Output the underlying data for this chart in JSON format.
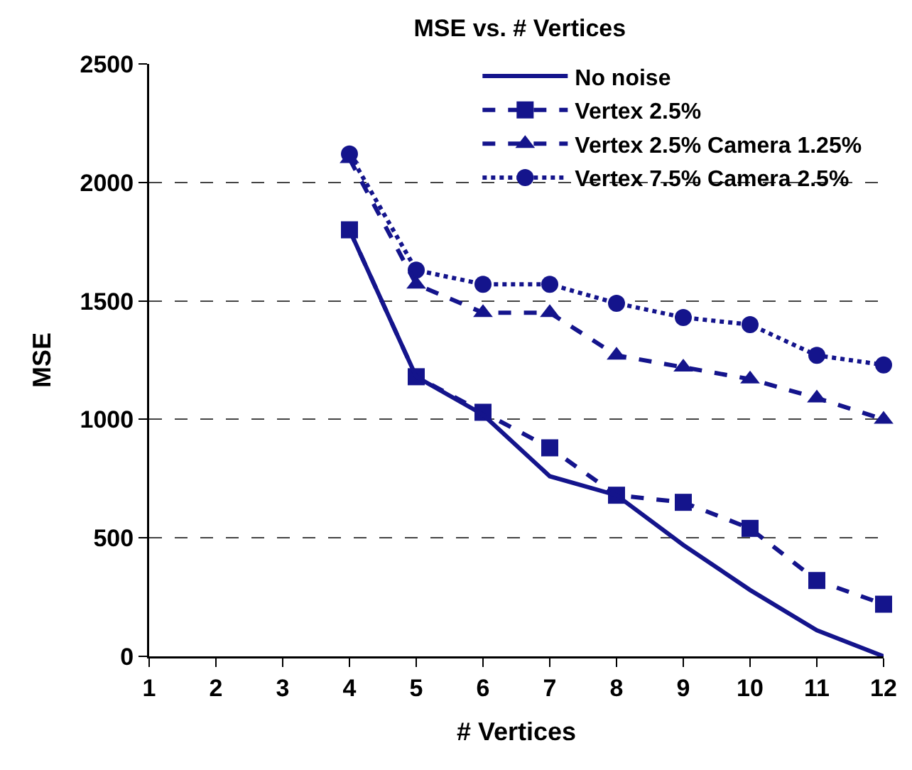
{
  "chart_data": {
    "type": "line",
    "title": "MSE vs. # Vertices",
    "xlabel": "# Vertices",
    "ylabel": "MSE",
    "x": [
      4,
      5,
      6,
      7,
      8,
      9,
      10,
      11,
      12
    ],
    "xlim": [
      1,
      12
    ],
    "xticks": [
      1,
      2,
      3,
      4,
      5,
      6,
      7,
      8,
      9,
      10,
      11,
      12
    ],
    "ylim": [
      0,
      2500
    ],
    "yticks": [
      0,
      500,
      1000,
      1500,
      2000,
      2500
    ],
    "grid": "y",
    "legend": "top right",
    "series": [
      {
        "name": "No noise",
        "color": "#14148c",
        "marker": "none",
        "line_style": "solid",
        "values": [
          1800,
          1180,
          1020,
          760,
          680,
          470,
          280,
          110,
          0
        ]
      },
      {
        "name": "Vertex 2.5%",
        "color": "#14148c",
        "marker": "square",
        "line_style": "dashed",
        "values": [
          1800,
          1180,
          1030,
          880,
          680,
          650,
          540,
          320,
          220
        ]
      },
      {
        "name": "Vertex 2.5% Camera 1.25%",
        "color": "#14148c",
        "marker": "triangle",
        "line_style": "dashed",
        "values": [
          2100,
          1570,
          1450,
          1450,
          1270,
          1220,
          1170,
          1090,
          1000
        ]
      },
      {
        "name": "Vertex 7.5% Camera 2.5%",
        "color": "#14148c",
        "marker": "circle",
        "line_style": "dotted",
        "values": [
          2120,
          1630,
          1570,
          1570,
          1490,
          1430,
          1400,
          1270,
          1230
        ]
      }
    ]
  }
}
